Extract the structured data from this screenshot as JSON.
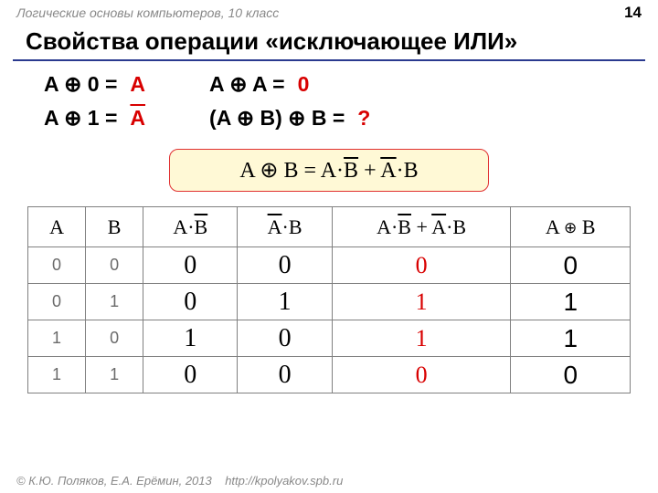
{
  "header": {
    "course": "Логические основы компьютеров, 10 класс",
    "page": "14"
  },
  "title": "Свойства операции «исключающее ИЛИ»",
  "props": {
    "l1": {
      "lhs": "A ⊕ 0 =",
      "rhs": "A",
      "overline": false
    },
    "l2": {
      "lhs": "A ⊕ 1 =",
      "rhs": "A",
      "overline": true
    },
    "r1": {
      "lhs": "A ⊕ A =",
      "rhs": "0"
    },
    "r2": {
      "lhs": "(A ⊕ B) ⊕ B =",
      "rhs": "?"
    }
  },
  "formula": {
    "lhs": "A ⊕ B",
    "eq": " = ",
    "t1a": "A·",
    "t1b": "B",
    "plus": " + ",
    "t2a": "A",
    "t2b": "·B"
  },
  "table": {
    "headers": {
      "c1": "A",
      "c2": "B",
      "c3a": "A·",
      "c3b": "B",
      "c4a": "A",
      "c4b": "·B",
      "c5a": "A·",
      "c5b": "B",
      "c5c": " + ",
      "c5d": "A",
      "c5e": "·B",
      "c6": "A ⊕ B"
    },
    "rows": [
      {
        "a": "0",
        "b": "0",
        "c3": "0",
        "c4": "0",
        "c5": "0",
        "c6": "0"
      },
      {
        "a": "0",
        "b": "1",
        "c3": "0",
        "c4": "1",
        "c5": "1",
        "c6": "1"
      },
      {
        "a": "1",
        "b": "0",
        "c3": "1",
        "c4": "0",
        "c5": "1",
        "c6": "1"
      },
      {
        "a": "1",
        "b": "1",
        "c3": "0",
        "c4": "0",
        "c5": "0",
        "c6": "0"
      }
    ]
  },
  "footer": {
    "copy": "© К.Ю. Поляков, Е.А. Ерёмин, 2013",
    "url": "http://kpolyakov.spb.ru"
  }
}
